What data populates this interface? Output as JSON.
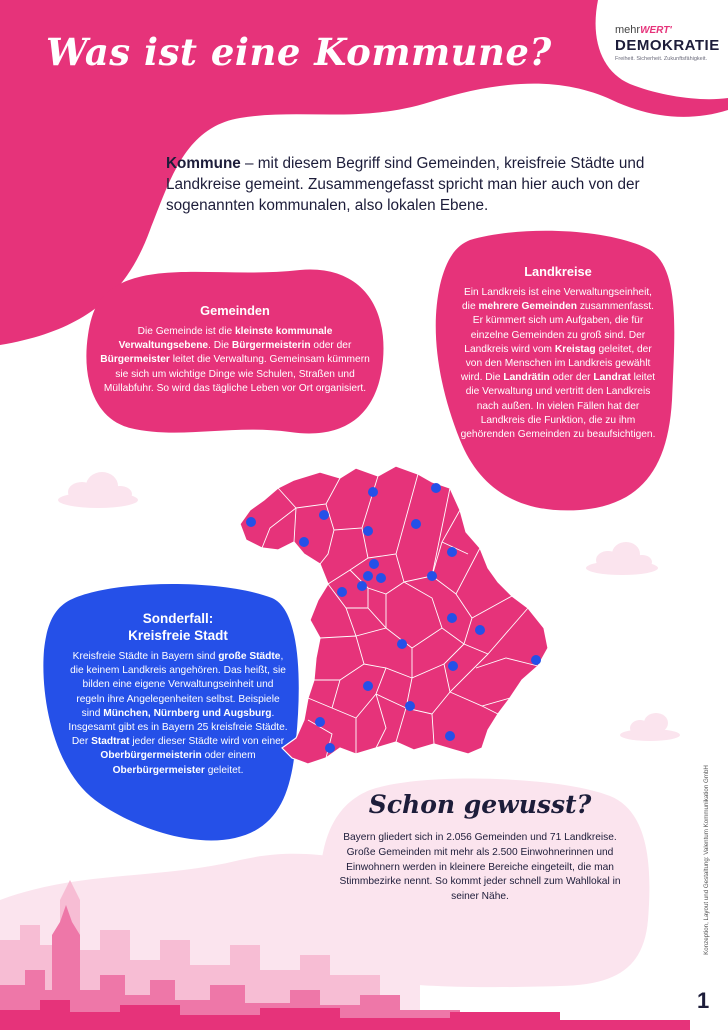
{
  "page": {
    "title": "Was ist eine Kommune?",
    "page_number": "1",
    "credit": "Konzeption, Layout und Gestaltung: Valentum Kommunikation GmbH"
  },
  "logo": {
    "mehr": "mehr",
    "wert": "WERT'",
    "name": "DEMOKRATIE",
    "slogan": "Freiheit. Sicherheit. Zukunftsfähigkeit."
  },
  "intro": {
    "bold": "Kommune",
    "text": " – mit diesem Begriff sind Gemeinden, kreisfreie Städte und Landkreise gemeint. Zusammengefasst spricht man hier auch von der sogenannten kommunalen, also lokalen Ebene."
  },
  "gemeinden": {
    "title": "Gemeinden",
    "t1": "Die Gemeinde ist die ",
    "b1": "kleinste kommunale Verwaltungsebene",
    "t2": ". Die ",
    "b2": "Bürgermeisterin",
    "t3": " oder der ",
    "b3": "Bürgermeister",
    "t4": " leitet die Verwaltung. Gemeinsam kümmern sie sich um wichtige Dinge wie Schulen, Straßen und Müllabfuhr. So wird das tägliche Leben vor Ort organisiert."
  },
  "landkreise": {
    "title": "Landkreise",
    "t1": "Ein Landkreis ist eine Verwaltungseinheit, die ",
    "b1": "mehrere Gemeinden",
    "t2": " zusammenfasst. Er kümmert sich um Aufgaben, die für einzelne Gemeinden zu groß sind. Der Landkreis wird vom ",
    "b2": "Kreistag",
    "t3": " geleitet, der von den Menschen im Landkreis gewählt wird. Die ",
    "b3": "Landrätin",
    "t4": " oder der ",
    "b4": "Landrat",
    "t5": " leitet die Verwaltung und vertritt den Landkreis nach außen. In vielen Fällen hat der Landkreis die Funktion, die zu ihm gehörenden Gemeinden zu beaufsichtigen."
  },
  "sonderfall": {
    "title1": "Sonderfall:",
    "title2": "Kreisfreie Stadt",
    "t1": "Kreisfreie Städte in Bayern sind ",
    "b1": "große Städte",
    "t2": ", die keinem Landkreis angehören. Das heißt, sie bilden eine eigene Verwaltungseinheit und regeln ihre Angelegenheiten selbst. Beispiele sind ",
    "b2": "München, Nürnberg und Augsburg",
    "t3": ". Insgesamt gibt es in Bayern 25 kreisfreie Städte. Der ",
    "b3": "Stadtrat",
    "t4": " jeder dieser Städte wird von einer ",
    "b4": "Oberbürgermeisterin",
    "t5": " oder einem ",
    "b5": "Oberbürgermeister",
    "t6": " geleitet."
  },
  "schon_gewusst": {
    "title": "Schon gewusst?",
    "text": "Bayern gliedert sich in 2.056 Gemeinden und 71 Landkreise. Große Gemeinden mit mehr als 2.500 Einwohnerinnen und Einwohnern werden in kleinere Bereiche eingeteilt, die man Stimmbezirke nennt. So kommt jeder schnell zum Wahllokal in seiner Nähe."
  },
  "colors": {
    "pink": "#e6337a",
    "blue": "#2550e8",
    "light_pink": "#fbe4ee",
    "dark_text": "#1d1d3a"
  },
  "map": {
    "region": "Bayern",
    "icon": "bavaria-map-icon"
  }
}
